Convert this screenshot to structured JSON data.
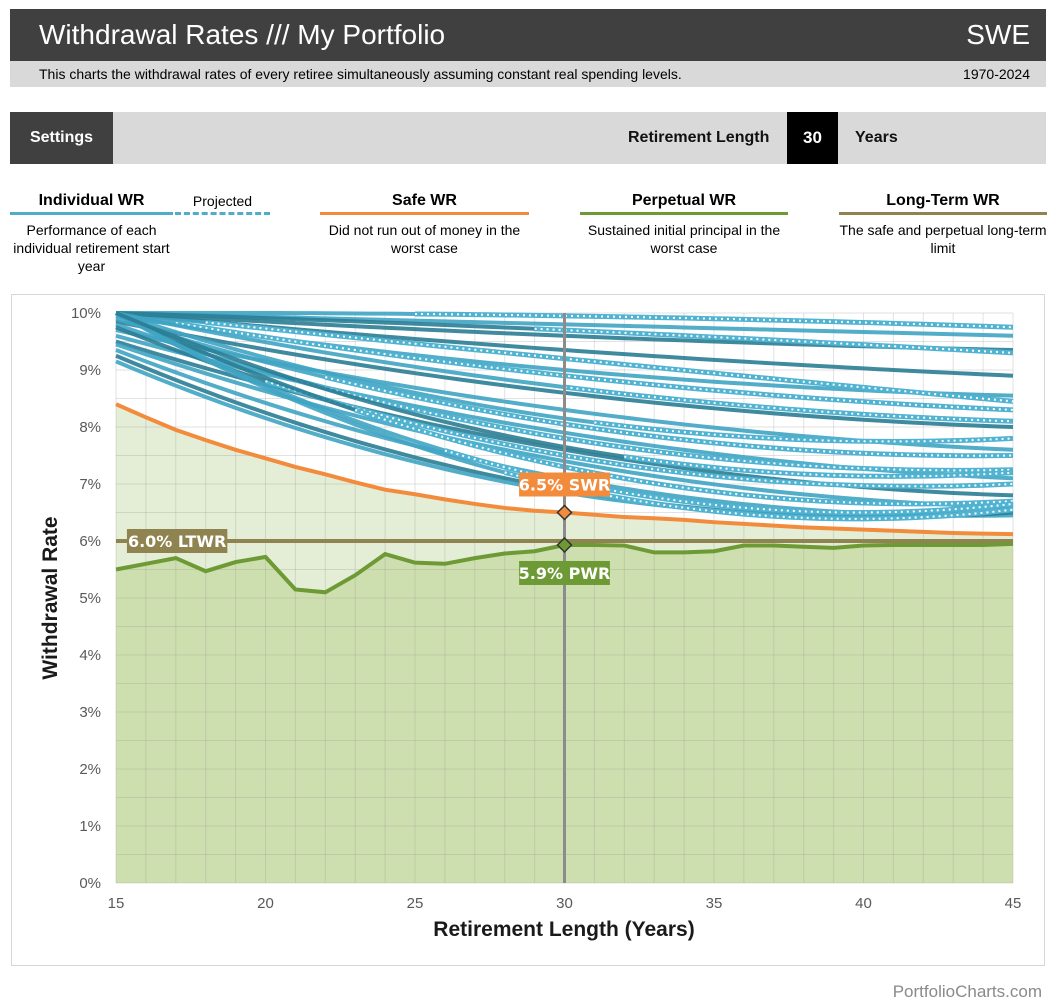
{
  "header": {
    "title": "Withdrawal Rates /// My Portfolio",
    "country": "SWE",
    "description": "This charts the withdrawal rates of every retiree simultaneously assuming constant real spending levels.",
    "date_range": "1970-2024"
  },
  "settings": {
    "button_label": "Settings",
    "retirement_length_label": "Retirement Length",
    "retirement_length_value": "30",
    "retirement_length_unit": "Years"
  },
  "legend": {
    "individual": {
      "title": "Individual WR",
      "projected_label": "Projected",
      "description": "Performance of each individual retirement start year",
      "color": "#4fadc8"
    },
    "safe": {
      "title": "Safe WR",
      "description": "Did not run out of money in the worst case",
      "color": "#f28c3c"
    },
    "perpetual": {
      "title": "Perpetual WR",
      "description": "Sustained initial principal in the worst case",
      "color": "#6e9a35"
    },
    "long_term": {
      "title": "Long-Term WR",
      "description": "The safe and perpetual long-term limit",
      "color": "#8f8450"
    }
  },
  "chart_data": {
    "type": "line",
    "title": "",
    "xlabel": "Retirement Length (Years)",
    "ylabel": "Withdrawal Rate",
    "xlim": [
      15,
      45
    ],
    "ylim": [
      0,
      10
    ],
    "x_ticks": [
      "15",
      "20",
      "25",
      "30",
      "35",
      "40",
      "45"
    ],
    "y_ticks": [
      "0%",
      "1%",
      "2%",
      "3%",
      "4%",
      "5%",
      "6%",
      "7%",
      "8%",
      "9%",
      "10%"
    ],
    "grid": true,
    "x": [
      15,
      16,
      17,
      18,
      19,
      20,
      21,
      22,
      23,
      24,
      25,
      26,
      27,
      28,
      29,
      30,
      31,
      32,
      33,
      34,
      35,
      36,
      37,
      38,
      39,
      40,
      41,
      42,
      43,
      44,
      45
    ],
    "series": [
      {
        "name": "Safe WR",
        "color": "#f28c3c",
        "values": [
          8.4,
          8.17,
          7.95,
          7.77,
          7.6,
          7.45,
          7.3,
          7.17,
          7.03,
          6.9,
          6.82,
          6.73,
          6.65,
          6.58,
          6.53,
          6.5,
          6.46,
          6.42,
          6.4,
          6.37,
          6.33,
          6.3,
          6.27,
          6.24,
          6.22,
          6.2,
          6.18,
          6.16,
          6.14,
          6.13,
          6.12
        ]
      },
      {
        "name": "Perpetual WR",
        "color": "#6e9a35",
        "values": [
          5.5,
          5.6,
          5.7,
          5.47,
          5.63,
          5.72,
          5.15,
          5.1,
          5.4,
          5.77,
          5.62,
          5.6,
          5.7,
          5.78,
          5.82,
          5.93,
          5.93,
          5.92,
          5.8,
          5.8,
          5.82,
          5.92,
          5.92,
          5.9,
          5.88,
          5.92,
          5.93,
          5.93,
          5.93,
          5.93,
          5.95
        ]
      },
      {
        "name": "Long-Term WR",
        "color": "#8f8450",
        "values": [
          6.0
        ]
      }
    ],
    "individual_series": {
      "name": "Individual WR",
      "note": "approximate curves per retirement start year; dashed segments are projected",
      "curves": [
        {
          "start": 9.85,
          "at30": 8.6,
          "end": 8.0,
          "projected_from": 0
        },
        {
          "start": 9.7,
          "at30": 8.3,
          "end": 7.6,
          "projected_from": 0
        },
        {
          "start": 9.6,
          "at30": 7.9,
          "end": 7.1,
          "projected_from": 0
        },
        {
          "start": 9.5,
          "at30": 7.6,
          "end": 6.8,
          "projected_from": 0
        },
        {
          "start": 9.45,
          "at30": 7.4,
          "end": 6.6,
          "projected_from": 0
        },
        {
          "start": 9.35,
          "at30": 7.1,
          "end": 6.45,
          "projected_from": 0
        },
        {
          "start": 9.25,
          "at30": 6.9,
          "end": 6.5,
          "projected_from": 0
        },
        {
          "start": 9.15,
          "at30": 6.85,
          "end": 6.6,
          "projected_from": 0
        },
        {
          "start": 9.95,
          "at30": 9.0,
          "end": 8.55,
          "projected_from": 0
        },
        {
          "start": 10.0,
          "at30": 9.35,
          "end": 8.9,
          "projected_from": 0
        },
        {
          "start": 9.9,
          "at30": 8.05,
          "end": 7.5,
          "projected_from": 22
        },
        {
          "start": 9.8,
          "at30": 7.8,
          "end": 7.25,
          "projected_from": 21
        },
        {
          "start": 9.75,
          "at30": 7.5,
          "end": 7.0,
          "projected_from": 20
        },
        {
          "start": 10.0,
          "at30": 8.9,
          "end": 8.3,
          "projected_from": 17
        },
        {
          "start": 10.0,
          "at30": 9.2,
          "end": 8.45,
          "projected_from": 18
        },
        {
          "start": 10.0,
          "at30": 7.3,
          "end": 6.7,
          "projected_from": 23
        },
        {
          "start": 10.0,
          "at30": 7.05,
          "end": 6.65,
          "projected_from": 26
        },
        {
          "start": 10.0,
          "at30": 6.95,
          "end": 6.55,
          "projected_from": 28
        },
        {
          "start": 10.0,
          "at30": 9.6,
          "end": 9.35,
          "projected_from": 0
        },
        {
          "start": 10.0,
          "at30": 9.8,
          "end": 9.6,
          "projected_from": 0
        },
        {
          "start": 10.0,
          "at30": 9.95,
          "end": 9.75,
          "projected_from": 25
        },
        {
          "start": 10.0,
          "at30": 9.7,
          "end": 9.3,
          "projected_from": 29
        },
        {
          "start": 10.0,
          "at30": 8.7,
          "end": 8.1,
          "projected_from": 30
        },
        {
          "start": 10.0,
          "at30": 8.15,
          "end": 7.8,
          "projected_from": 31
        },
        {
          "start": 10.0,
          "at30": 7.65,
          "end": 7.2,
          "projected_from": 32
        }
      ]
    },
    "annotations": [
      {
        "label": "6.5% SWR",
        "x": 30,
        "y": 6.5,
        "color": "#f28c3c"
      },
      {
        "label": "5.9% PWR",
        "x": 30,
        "y": 5.93,
        "color": "#6e9a35"
      },
      {
        "label": "6.0% LTWR",
        "x": 15.6,
        "y": 6.0,
        "color": "#8f8450"
      }
    ],
    "selected_x": 30
  },
  "footer": {
    "text": "PortfolioCharts.com"
  }
}
